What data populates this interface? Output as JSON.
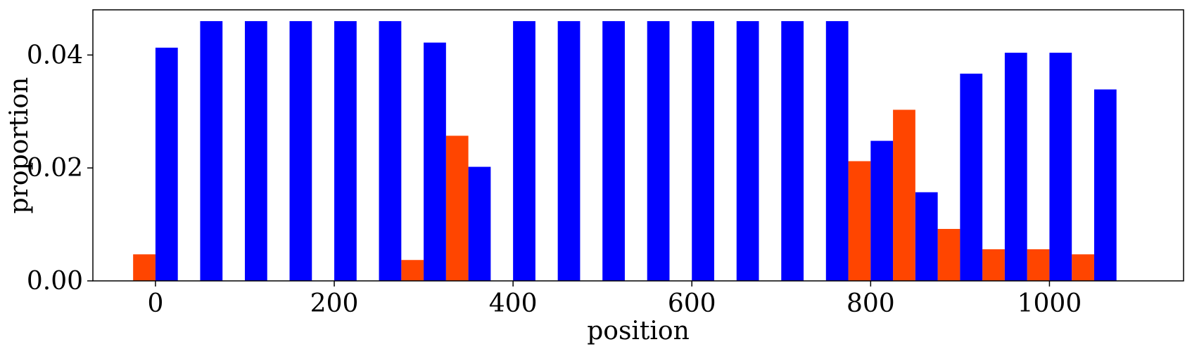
{
  "chart_data": {
    "type": "bar",
    "xlabel": "position",
    "ylabel": "proportion",
    "xlim": [
      -70,
      1150
    ],
    "ylim": [
      0,
      0.048
    ],
    "xticks": [
      0,
      200,
      400,
      600,
      800,
      1000
    ],
    "xtick_labels": [
      "0",
      "200",
      "400",
      "600",
      "800",
      "1000"
    ],
    "yticks": [
      0,
      0.02,
      0.04
    ],
    "ytick_labels": [
      "0.00",
      "0.02",
      "0.04"
    ],
    "grid": false,
    "bar_width": 25,
    "series": [
      {
        "color": "#ff4500",
        "offset": -12.5,
        "x": [
          0,
          50,
          100,
          150,
          200,
          250,
          300,
          350,
          400,
          450,
          500,
          550,
          600,
          650,
          700,
          750,
          800,
          850,
          900,
          950,
          1000,
          1050
        ],
        "values": [
          0.0047,
          0,
          0,
          0,
          0,
          0,
          0.0037,
          0.0257,
          0,
          0,
          0,
          0,
          0,
          0,
          0,
          0,
          0.0212,
          0.0303,
          0.0092,
          0.0056,
          0.0056,
          0.0047
        ]
      },
      {
        "color": "#0000ff",
        "offset": 12.5,
        "x": [
          0,
          50,
          100,
          150,
          200,
          250,
          300,
          350,
          400,
          450,
          500,
          550,
          600,
          650,
          700,
          750,
          800,
          850,
          900,
          950,
          1000,
          1050
        ],
        "values": [
          0.0413,
          0.046,
          0.046,
          0.046,
          0.046,
          0.046,
          0.0422,
          0.0202,
          0.046,
          0.046,
          0.046,
          0.046,
          0.046,
          0.046,
          0.046,
          0.046,
          0.0248,
          0.0157,
          0.0367,
          0.0404,
          0.0404,
          0.0339
        ]
      }
    ]
  }
}
